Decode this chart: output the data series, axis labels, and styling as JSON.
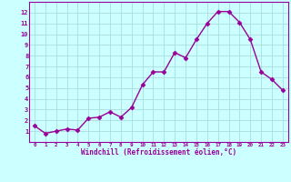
{
  "x": [
    0,
    1,
    2,
    3,
    4,
    5,
    6,
    7,
    8,
    9,
    10,
    11,
    12,
    13,
    14,
    15,
    16,
    17,
    18,
    19,
    20,
    21,
    22,
    23
  ],
  "y": [
    1.5,
    0.8,
    1.0,
    1.2,
    1.1,
    2.2,
    2.3,
    2.8,
    2.3,
    3.2,
    5.3,
    6.5,
    6.5,
    8.3,
    7.8,
    9.5,
    11.0,
    12.1,
    12.1,
    11.1,
    9.5,
    6.5,
    5.8,
    4.8
  ],
  "line_color": "#990099",
  "marker": "D",
  "markersize": 2.5,
  "linewidth": 1.0,
  "bg_color": "#ccffff",
  "grid_color": "#aadddd",
  "xlabel": "Windchill (Refroidissement éolien,°C)",
  "xlabel_color": "#990099",
  "tick_color": "#990099",
  "xlim": [
    -0.5,
    23.5
  ],
  "ylim": [
    0,
    13
  ],
  "yticks": [
    1,
    2,
    3,
    4,
    5,
    6,
    7,
    8,
    9,
    10,
    11,
    12
  ],
  "xticks": [
    0,
    1,
    2,
    3,
    4,
    5,
    6,
    7,
    8,
    9,
    10,
    11,
    12,
    13,
    14,
    15,
    16,
    17,
    18,
    19,
    20,
    21,
    22,
    23
  ],
  "spine_color": "#990099"
}
